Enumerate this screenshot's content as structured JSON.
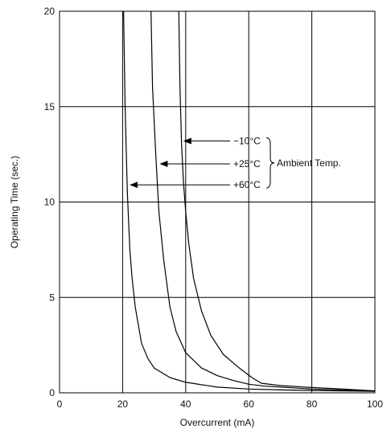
{
  "chart_data": {
    "type": "line",
    "xlabel": "Overcurrent (mA)",
    "ylabel": "Operating Time (sec.)",
    "xlim": [
      0,
      100
    ],
    "ylim": [
      0,
      20
    ],
    "x_ticks": [
      "0",
      "20",
      "40",
      "60",
      "80",
      "100"
    ],
    "y_ticks": [
      "0",
      "5",
      "10",
      "15",
      "20"
    ],
    "grid": true,
    "annotation_group_label": "Ambient Temp.",
    "series": [
      {
        "name": "+60°C",
        "points": [
          [
            20.3,
            20
          ],
          [
            20.8,
            15
          ],
          [
            21.5,
            10.5
          ],
          [
            22.3,
            7.5
          ],
          [
            23,
            6
          ],
          [
            24,
            4.5
          ],
          [
            26,
            2.6
          ],
          [
            28,
            1.8
          ],
          [
            30,
            1.3
          ],
          [
            35,
            0.8
          ],
          [
            40,
            0.55
          ],
          [
            50,
            0.3
          ],
          [
            60,
            0.2
          ],
          [
            70,
            0.15
          ],
          [
            80,
            0.12
          ],
          [
            100,
            0.08
          ]
        ]
      },
      {
        "name": "+25°C",
        "points": [
          [
            29,
            20
          ],
          [
            29.5,
            16
          ],
          [
            30.5,
            12.5
          ],
          [
            31.5,
            9.5
          ],
          [
            33,
            7
          ],
          [
            35,
            4.5
          ],
          [
            37,
            3.2
          ],
          [
            40,
            2.1
          ],
          [
            45,
            1.3
          ],
          [
            50,
            0.9
          ],
          [
            55,
            0.65
          ],
          [
            60,
            0.45
          ],
          [
            65,
            0.35
          ],
          [
            80,
            0.2
          ],
          [
            100,
            0.1
          ]
        ]
      },
      {
        "name": "−10°C",
        "points": [
          [
            37.8,
            20
          ],
          [
            38.2,
            16
          ],
          [
            38.7,
            13
          ],
          [
            39.3,
            11
          ],
          [
            40,
            9.5
          ],
          [
            41,
            7.8
          ],
          [
            42.5,
            6
          ],
          [
            45,
            4.3
          ],
          [
            48,
            3
          ],
          [
            52,
            2
          ],
          [
            57,
            1.3
          ],
          [
            61,
            0.8
          ],
          [
            64,
            0.5
          ],
          [
            70,
            0.38
          ],
          [
            80,
            0.28
          ],
          [
            90,
            0.2
          ],
          [
            100,
            0.1
          ]
        ]
      }
    ],
    "annotations": [
      {
        "label": "−10°C",
        "arrow_x": 39.5,
        "y": 13.2
      },
      {
        "label": "+25°C",
        "arrow_x": 32,
        "y": 12.0
      },
      {
        "label": "+60°C",
        "arrow_x": 22.5,
        "y": 10.9
      }
    ]
  }
}
